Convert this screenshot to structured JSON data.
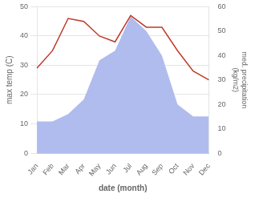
{
  "chart_data": {
    "type": "line",
    "xlabel": "date (month)",
    "ylabel": "max temp (C)",
    "y2label": "med. precipitation\n(kg/m2)",
    "categories": [
      "Jan",
      "Feb",
      "Mar",
      "Apr",
      "May",
      "Jun",
      "Jul",
      "Aug",
      "Sep",
      "Oct",
      "Nov",
      "Dec"
    ],
    "series": [
      {
        "type": "area",
        "color": "#b0bcee",
        "axis": "y2",
        "values": [
          13,
          13,
          16,
          22,
          38,
          42,
          56,
          50,
          40,
          20,
          15,
          15
        ]
      },
      {
        "type": "line",
        "color": "#c0392b",
        "values": [
          29,
          35,
          46,
          45,
          40,
          38,
          47,
          43,
          43,
          35,
          28,
          25
        ]
      }
    ],
    "ylim": [
      0,
      50
    ],
    "yticks": [
      0,
      10,
      20,
      30,
      40,
      50
    ],
    "y2lim": [
      0,
      60
    ],
    "y2ticks": [
      0,
      10,
      20,
      30,
      40,
      50,
      60
    ],
    "grid": true
  }
}
